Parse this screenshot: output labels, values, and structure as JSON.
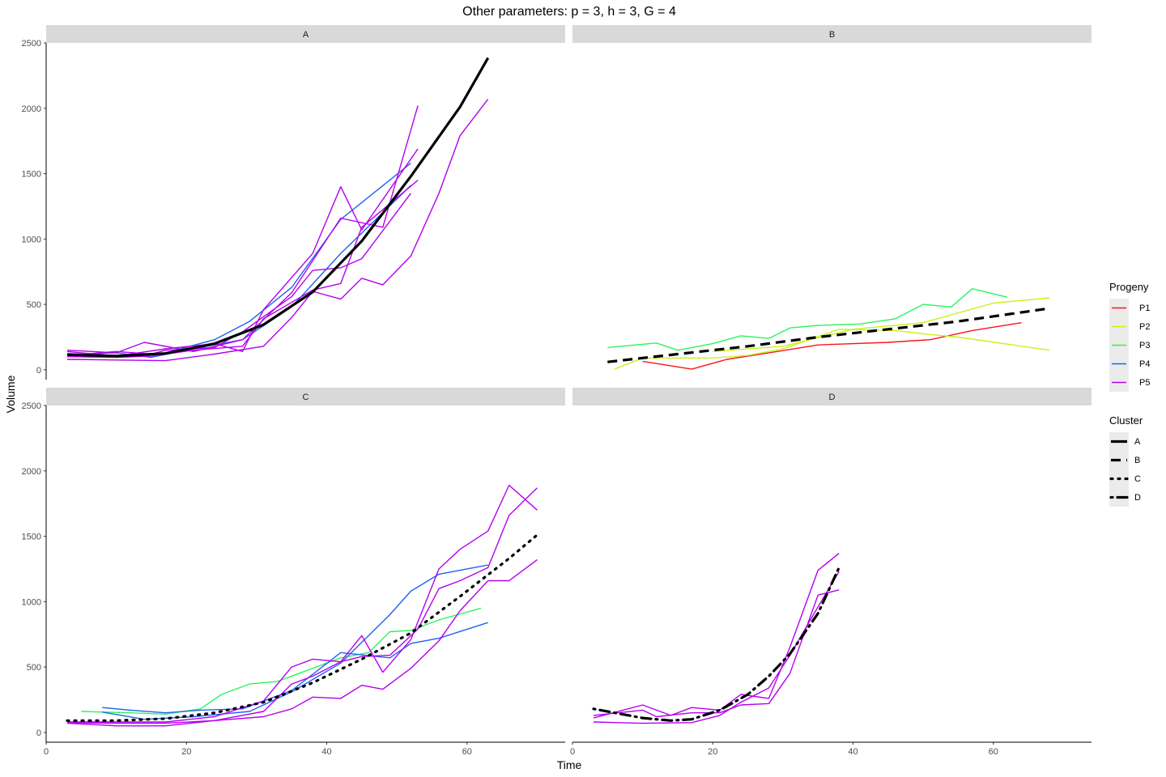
{
  "chart_data": {
    "type": "line",
    "title": "Other parameters: p = 3, h = 3, G = 4",
    "xlabel": "Time",
    "ylabel": "Volume",
    "xlim": [
      0,
      74
    ],
    "ylim": [
      -75,
      2500
    ],
    "x_ticks": [
      0,
      20,
      40,
      60
    ],
    "y_ticks": [
      0,
      500,
      1000,
      1500,
      2000,
      2500
    ],
    "x_tick_labels": [
      "0",
      "20",
      "40",
      "60"
    ],
    "y_tick_labels": [
      "0",
      "500",
      "1000",
      "1500",
      "2000",
      "2500"
    ],
    "grid": false,
    "legend_position": "right",
    "progeny_legend": {
      "title": "Progeny",
      "items": [
        {
          "label": "P1",
          "color": "#F8151C"
        },
        {
          "label": "P2",
          "color": "#C9F21B"
        },
        {
          "label": "P3",
          "color": "#2AF55C"
        },
        {
          "label": "P4",
          "color": "#1F63F2"
        },
        {
          "label": "P5",
          "color": "#B400F0"
        }
      ]
    },
    "cluster_legend": {
      "title": "Cluster",
      "items": [
        {
          "label": "A",
          "dash": "solid"
        },
        {
          "label": "B",
          "dash": "dashed"
        },
        {
          "label": "C",
          "dash": "dotted"
        },
        {
          "label": "D",
          "dash": "dotdash"
        }
      ]
    },
    "panels": [
      {
        "label": "A",
        "cluster_curve": {
          "cluster": "A",
          "x": [
            3,
            10,
            17,
            24,
            31,
            38,
            45,
            52,
            59,
            63
          ],
          "y": [
            115,
            105,
            125,
            200,
            345,
            595,
            985,
            1480,
            2010,
            2385
          ]
        },
        "series": [
          {
            "progeny": "P4",
            "x": [
              3,
              10,
              17,
              24,
              29,
              35,
              42,
              52
            ],
            "y": [
              125,
              110,
              130,
              230,
              370,
              630,
              1150,
              1580
            ]
          },
          {
            "progeny": "P4",
            "x": [
              3,
              10,
              15,
              21,
              28,
              35,
              42,
              52
            ],
            "y": [
              115,
              130,
              95,
              160,
              230,
              480,
              890,
              1410
            ]
          },
          {
            "progeny": "P5",
            "x": [
              3,
              10,
              14,
              21,
              28,
              35,
              42,
              48,
              53
            ],
            "y": [
              150,
              130,
              210,
              140,
              230,
              590,
              1160,
              1090,
              2020
            ]
          },
          {
            "progeny": "P5",
            "x": [
              3,
              10,
              17,
              24,
              28,
              31,
              38,
              42,
              45,
              53
            ],
            "y": [
              140,
              105,
              160,
              200,
              140,
              460,
              890,
              1400,
              1070,
              1690
            ]
          },
          {
            "progeny": "P5",
            "x": [
              3,
              10,
              15,
              21,
              28,
              31,
              38,
              42,
              45,
              53
            ],
            "y": [
              100,
              95,
              105,
              150,
              180,
              390,
              610,
              660,
              1090,
              1450
            ]
          },
          {
            "progeny": "P5",
            "x": [
              3,
              10,
              15,
              17,
              24,
              28,
              35,
              38,
              42,
              45,
              52
            ],
            "y": [
              110,
              140,
              120,
              150,
              170,
              290,
              560,
              760,
              780,
              850,
              1350
            ]
          },
          {
            "progeny": "P5",
            "x": [
              3,
              10,
              17,
              24,
              31,
              35,
              38,
              42,
              45,
              48,
              52,
              56,
              59,
              63
            ],
            "y": [
              80,
              75,
              70,
              120,
              180,
              400,
              600,
              540,
              700,
              650,
              870,
              1350,
              1790,
              2070
            ]
          }
        ]
      },
      {
        "label": "B",
        "cluster_curve": {
          "cluster": "B",
          "x": [
            5,
            15,
            25,
            35,
            45,
            55,
            68
          ],
          "y": [
            60,
            120,
            180,
            250,
            310,
            370,
            470
          ]
        },
        "series": [
          {
            "progeny": "P1",
            "x": [
              10,
              17,
              22,
              28,
              35,
              45,
              51,
              57,
              64
            ],
            "y": [
              65,
              5,
              80,
              130,
              190,
              210,
              230,
              300,
              360
            ]
          },
          {
            "progeny": "P2",
            "x": [
              6,
              10,
              20,
              25,
              30,
              38,
              46,
              51,
              55,
              68
            ],
            "y": [
              5,
              90,
              90,
              110,
              160,
              310,
              300,
              270,
              250,
              150
            ]
          },
          {
            "progeny": "P2",
            "x": [
              20,
              30,
              40,
              50,
              60,
              68
            ],
            "y": [
              140,
              180,
              310,
              360,
              510,
              550
            ]
          },
          {
            "progeny": "P3",
            "x": [
              5,
              12,
              15,
              20,
              24,
              28,
              31,
              35,
              41,
              46,
              50,
              54,
              57,
              62
            ],
            "y": [
              170,
              205,
              150,
              200,
              260,
              240,
              320,
              340,
              350,
              390,
              500,
              480,
              620,
              555
            ]
          }
        ]
      },
      {
        "label": "C",
        "cluster_curve": {
          "cluster": "C",
          "x": [
            3,
            10,
            17,
            24,
            31,
            38,
            45,
            52,
            59,
            66,
            70
          ],
          "y": [
            90,
            90,
            105,
            150,
            230,
            380,
            560,
            760,
            1040,
            1330,
            1510
          ]
        },
        "series": [
          {
            "progeny": "P3",
            "x": [
              5,
              12,
              17,
              22,
              25,
              29,
              33,
              36,
              42,
              46,
              49,
              52,
              56,
              62
            ],
            "y": [
              160,
              150,
              140,
              180,
              290,
              370,
              390,
              450,
              570,
              610,
              770,
              780,
              860,
              950
            ]
          },
          {
            "progeny": "P4",
            "x": [
              8,
              12,
              17,
              22,
              28,
              35,
              42,
              49,
              52,
              56,
              63
            ],
            "y": [
              190,
              170,
              150,
              170,
              180,
              320,
              610,
              570,
              680,
              720,
              840
            ]
          },
          {
            "progeny": "P4",
            "x": [
              8,
              14,
              21,
              29,
              35,
              42,
              49,
              52,
              56,
              63
            ],
            "y": [
              155,
              100,
              120,
              160,
              310,
              530,
              900,
              1080,
              1210,
              1280
            ]
          },
          {
            "progeny": "P5",
            "x": [
              3,
              10,
              17,
              24,
              31,
              35,
              38,
              42,
              45,
              48,
              52,
              56,
              59,
              63,
              66,
              70
            ],
            "y": [
              80,
              80,
              80,
              120,
              240,
              500,
              560,
              540,
              740,
              460,
              710,
              1250,
              1400,
              1540,
              1890,
              1700
            ]
          },
          {
            "progeny": "P5",
            "x": [
              3,
              10,
              17,
              24,
              31,
              35,
              38,
              42,
              45,
              49,
              53,
              56,
              59,
              63,
              66,
              70
            ],
            "y": [
              75,
              70,
              70,
              90,
              160,
              370,
              430,
              540,
              580,
              590,
              790,
              1100,
              1160,
              1260,
              1660,
              1870
            ]
          },
          {
            "progeny": "P5",
            "x": [
              3,
              10,
              17,
              24,
              31,
              35,
              38,
              42,
              45,
              48,
              52,
              56,
              59,
              63,
              66,
              70
            ],
            "y": [
              70,
              50,
              50,
              90,
              120,
              180,
              270,
              260,
              360,
              330,
              490,
              700,
              930,
              1160,
              1160,
              1320
            ]
          }
        ]
      },
      {
        "label": "D",
        "cluster_curve": {
          "cluster": "D",
          "x": [
            3,
            10,
            14,
            17,
            21,
            25,
            28,
            31,
            35,
            38
          ],
          "y": [
            180,
            110,
            90,
            100,
            170,
            290,
            430,
            600,
            910,
            1260
          ]
        },
        "series": [
          {
            "progeny": "P5",
            "x": [
              3,
              10,
              14,
              17,
              21,
              24,
              28,
              31,
              35,
              38
            ],
            "y": [
              110,
              210,
              130,
              190,
              170,
              290,
              260,
              650,
              1240,
              1370
            ]
          },
          {
            "progeny": "P5",
            "x": [
              3,
              10,
              12,
              17,
              21,
              24,
              28,
              31,
              35,
              38
            ],
            "y": [
              130,
              170,
              120,
              150,
              150,
              210,
              220,
              450,
              1050,
              1090
            ]
          },
          {
            "progeny": "P5",
            "x": [
              3,
              10,
              17,
              21,
              24,
              28,
              31,
              35,
              38
            ],
            "y": [
              80,
              70,
              75,
              130,
              230,
              340,
              590,
              960,
              1230
            ]
          }
        ]
      }
    ]
  }
}
